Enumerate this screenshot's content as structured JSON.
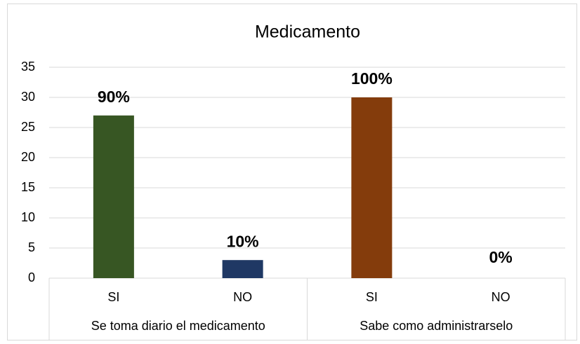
{
  "chart_data": {
    "type": "bar",
    "title": "Medicamento",
    "categories": [
      "SI",
      "NO",
      "SI",
      "NO"
    ],
    "groups": [
      "Se toma diario el medicamento",
      "Sabe como administrarselo"
    ],
    "values": [
      27,
      3,
      30,
      0
    ],
    "value_labels": [
      "90%",
      "10%",
      "100%",
      "0%"
    ],
    "colors": [
      "#375623",
      "#1F3864",
      "#843C0C",
      "#1F3864"
    ],
    "ylim": [
      0,
      35
    ],
    "yticks": [
      0,
      5,
      10,
      15,
      20,
      25,
      30,
      35
    ],
    "grid": true
  }
}
